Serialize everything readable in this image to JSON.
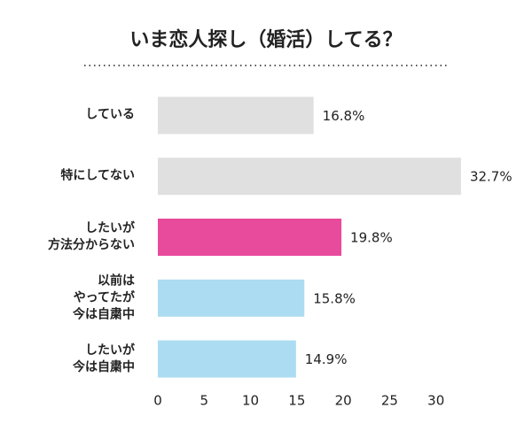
{
  "chart_data": {
    "type": "bar",
    "orientation": "horizontal",
    "title": "いま恋人探し（婚活）してる？",
    "categories": [
      "している",
      "特にしてない",
      "したいが\n方法分からない",
      "以前は\nやってたが\n今は自粛中",
      "したいが\n今は自粛中"
    ],
    "values": [
      16.8,
      32.7,
      19.8,
      15.8,
      14.9
    ],
    "value_labels": [
      "16.8%",
      "32.7%",
      "19.8%",
      "15.8%",
      "14.9%"
    ],
    "colors": [
      "#e0e0e0",
      "#e0e0e0",
      "#e84a9c",
      "#abdcf1",
      "#abdcf1"
    ],
    "xlim": [
      0,
      35
    ],
    "xticks": [
      0,
      5,
      10,
      15,
      20,
      25,
      30
    ],
    "grid": false
  }
}
